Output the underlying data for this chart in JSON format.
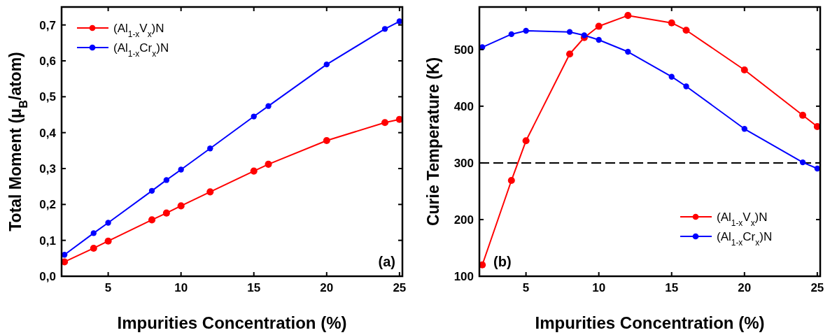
{
  "chart_data": [
    {
      "type": "line",
      "xlabel": "Impurities Concentration (%)",
      "ylabel": "Total Moment (μ$_{B}$/atom)",
      "x": [
        2,
        4,
        5,
        8,
        9,
        10,
        12,
        15,
        16,
        20,
        24,
        25
      ],
      "xlim": [
        1.8,
        25.2
      ],
      "xticks": [
        5,
        10,
        15,
        20,
        25
      ],
      "ylim": [
        0,
        0.75
      ],
      "yticks": [
        {
          "value": 0,
          "label": "0,0"
        },
        {
          "value": 0.1,
          "label": "0,1"
        },
        {
          "value": 0.2,
          "label": "0,2"
        },
        {
          "value": 0.3,
          "label": "0,3"
        },
        {
          "value": 0.4,
          "label": "0,4"
        },
        {
          "value": 0.5,
          "label": "0,5"
        },
        {
          "value": 0.6,
          "label": "0,6"
        },
        {
          "value": 0.7,
          "label": "0,7"
        }
      ],
      "marker": "circle",
      "legend": "top left",
      "grid": false,
      "annotations": [
        "(a)"
      ],
      "series": [
        {
          "name": "(Al$_{1-x}$V$_{x}$)N",
          "color": "#ff0000",
          "values": [
            0.04,
            0.078,
            0.098,
            0.157,
            0.176,
            0.196,
            0.235,
            0.293,
            0.312,
            0.378,
            0.428,
            0.437
          ]
        },
        {
          "name": "(Al$_{1-x}$Cr$_{x}$)N",
          "color": "#0000ff",
          "values": [
            0.06,
            0.12,
            0.149,
            0.238,
            0.268,
            0.297,
            0.356,
            0.445,
            0.474,
            0.59,
            0.689,
            0.71
          ]
        }
      ]
    },
    {
      "type": "line",
      "xlabel": "Impurities Concentration (%)",
      "ylabel": "Curie Temperature (K)",
      "x": [
        2,
        4,
        5,
        8,
        9,
        10,
        12,
        15,
        16,
        20,
        24,
        25
      ],
      "xlim": [
        1.8,
        25.2
      ],
      "xticks": [
        5,
        10,
        15,
        20,
        25
      ],
      "ylim": [
        100,
        575
      ],
      "yticks": [
        100,
        200,
        300,
        400,
        500
      ],
      "marker": "circle",
      "legend": "bottom right",
      "grid": false,
      "annotations": [
        "(b)"
      ],
      "ref_lines": [
        {
          "axis": "y",
          "value": 300,
          "color": "#000000",
          "line_style": "dashed"
        }
      ],
      "series": [
        {
          "name": "(Al$_{1-x}$V$_{x}$)N",
          "color": "#ff0000",
          "values": [
            120,
            269,
            339,
            492,
            521,
            541,
            560,
            547,
            534,
            464,
            384,
            364
          ]
        },
        {
          "name": "(Al$_{1-x}$Cr$_{x}$)N",
          "color": "#0000ff",
          "values": [
            504,
            527,
            533,
            531,
            525,
            517,
            496,
            452,
            435,
            360,
            301,
            290
          ]
        }
      ]
    }
  ]
}
